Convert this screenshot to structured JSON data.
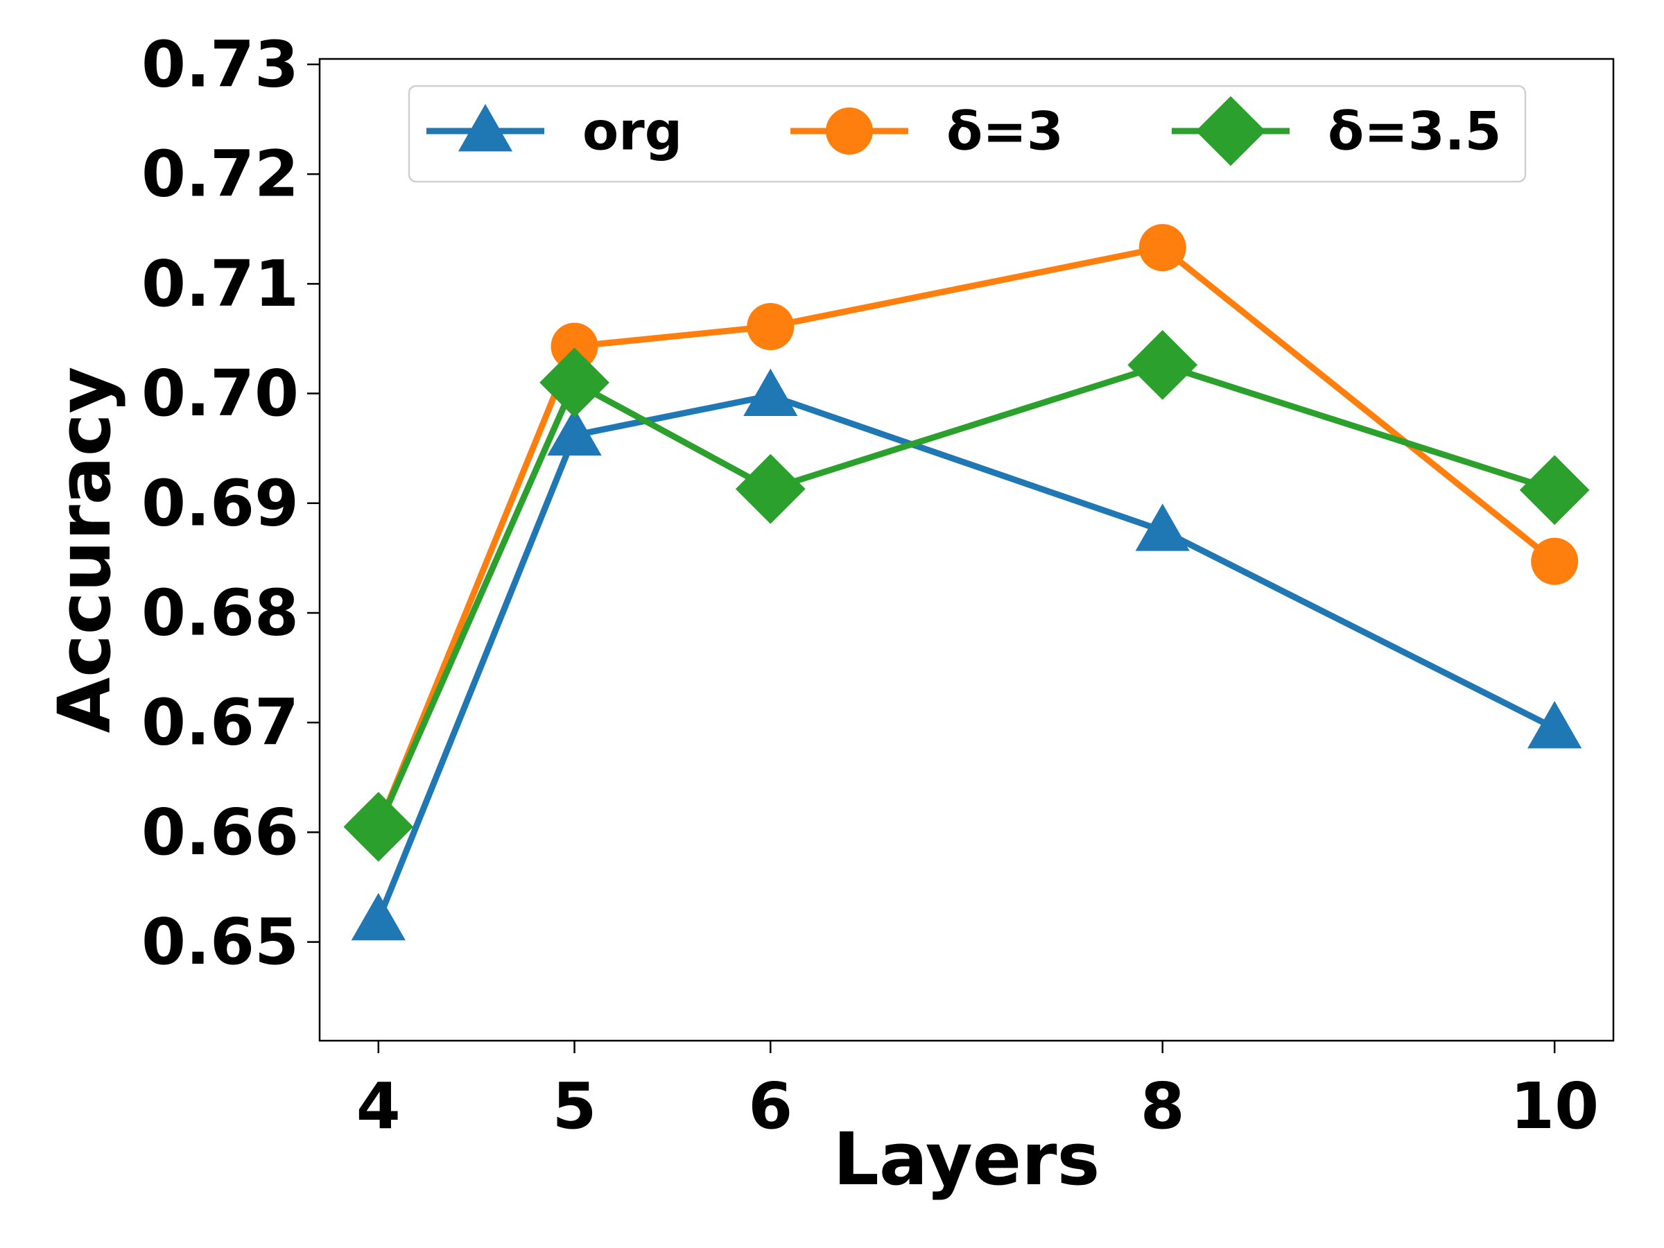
{
  "chart_data": {
    "type": "line",
    "xlabel": "Layers",
    "ylabel": "Accuracy",
    "x": [
      4,
      5,
      6,
      8,
      10
    ],
    "xlim": [
      3.7,
      10.3
    ],
    "ylim": [
      0.641,
      0.7305
    ],
    "xticks": [
      4,
      5,
      6,
      8,
      10
    ],
    "xtick_labels": [
      "4",
      "5",
      "6",
      "8",
      "10"
    ],
    "yticks": [
      0.65,
      0.66,
      0.67,
      0.68,
      0.69,
      0.7,
      0.71,
      0.72,
      0.73
    ],
    "ytick_labels": [
      "0.65",
      "0.66",
      "0.67",
      "0.68",
      "0.69",
      "0.70",
      "0.71",
      "0.72",
      "0.73"
    ],
    "grid": false,
    "legend_position": "top",
    "series": [
      {
        "name": "org",
        "values": [
          0.652,
          0.6962,
          0.6998,
          0.6875,
          0.6695
        ],
        "color": "#1f77b4",
        "marker": "triangle"
      },
      {
        "name": "δ=3",
        "values": [
          0.6605,
          0.7043,
          0.7061,
          0.7133,
          0.6847
        ],
        "color": "#ff7f0e",
        "marker": "circle"
      },
      {
        "name": "δ=3.5",
        "values": [
          0.6605,
          0.701,
          0.6913,
          0.7026,
          0.6912
        ],
        "color": "#2ca02c",
        "marker": "diamond"
      }
    ]
  }
}
